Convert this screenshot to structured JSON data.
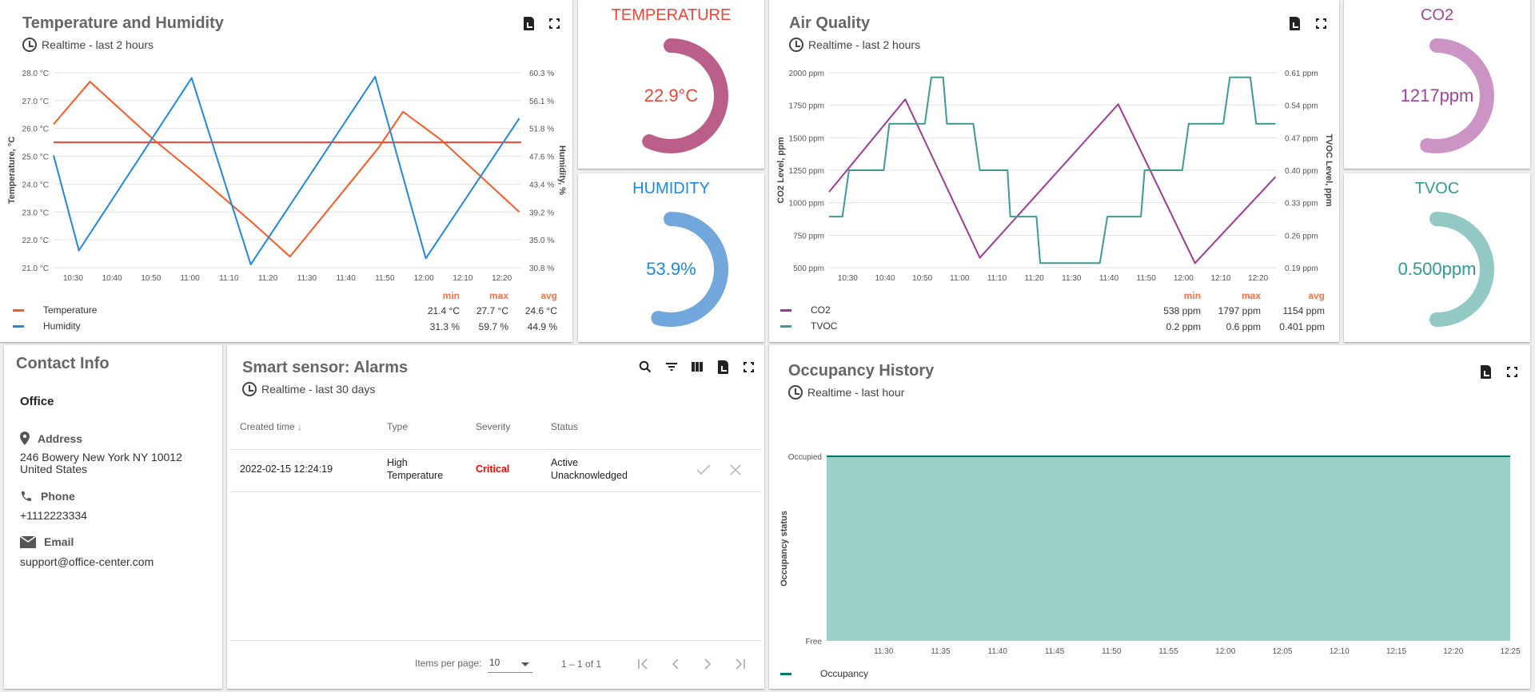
{
  "temp_humidity": {
    "title": "Temperature and Humidity",
    "subtitle": "Realtime - last 2 hours",
    "stats_headers": {
      "min": "min",
      "max": "max",
      "avg": "avg"
    },
    "legend": [
      {
        "name": "Temperature",
        "color": "#ff5722",
        "min": "21.4 °C",
        "max": "27.7 °C",
        "avg": "24.6 °C"
      },
      {
        "name": "Humidity",
        "color": "#1e88e5",
        "min": "31.3 %",
        "max": "59.7 %",
        "avg": "44.9 %"
      }
    ]
  },
  "gauges": {
    "temperature": {
      "title": "TEMPERATURE",
      "value": "22.9°C",
      "title_color": "#f44336",
      "value_color": "#f44336",
      "arc_color": "#bc5e8a",
      "level": 0.57
    },
    "humidity": {
      "title": "HUMIDITY",
      "value": "53.9%",
      "title_color": "#1e88e5",
      "value_color": "#1e88e5",
      "arc_color": "#72a7dc",
      "level": 0.54
    },
    "co2": {
      "title": "CO2",
      "value": "1217ppm",
      "title_color": "#a1439a",
      "value_color": "#a1439a",
      "arc_color": "#cb94c4",
      "level": 0.53
    },
    "tvoc": {
      "title": "TVOC",
      "value": "0.500ppm",
      "title_color": "#2e9c92",
      "value_color": "#2e9c92",
      "arc_color": "#93c9c4",
      "level": 0.5
    }
  },
  "air_quality": {
    "title": "Air Quality",
    "subtitle": "Realtime - last 2 hours",
    "stats_headers": {
      "min": "min",
      "max": "max",
      "avg": "avg"
    },
    "legend": [
      {
        "name": "CO2",
        "color": "#9c3a95",
        "min": "538 ppm",
        "max": "1797 ppm",
        "avg": "1154 ppm"
      },
      {
        "name": "TVOC",
        "color": "#3d9a94",
        "min": "0.2 ppm",
        "max": "0.6 ppm",
        "avg": "0.401 ppm"
      }
    ]
  },
  "contact": {
    "title": "Contact Info",
    "name": "Office",
    "address_label": "Address",
    "address_line1": "246 Bowery New York NY 10012",
    "address_line2": "United States",
    "phone_label": "Phone",
    "phone": "+1112223334",
    "email_label": "Email",
    "email": "support@office-center.com"
  },
  "alarms": {
    "title": "Smart sensor: Alarms",
    "subtitle": "Realtime - last 30 days",
    "columns": [
      "Created time",
      "Type",
      "Severity",
      "Status"
    ],
    "sort_icon": "arrow-down-icon",
    "rows": [
      {
        "created": "2022-02-15 12:24:19",
        "type_line1": "High",
        "type_line2": "Temperature",
        "severity": "Critical",
        "severity_color": "#ff0000",
        "status_line1": "Active",
        "status_line2": "Unacknowledged"
      }
    ],
    "items_per_page_label": "Items per page:",
    "items_per_page": "10",
    "range": "1 – 1 of 1"
  },
  "occupancy": {
    "title": "Occupancy History",
    "subtitle": "Realtime - last hour",
    "legend": [
      {
        "name": "Occupancy",
        "color": "#00796b"
      }
    ]
  },
  "chart_data": [
    {
      "type": "line",
      "title": "Temperature and Humidity",
      "x_ticks": [
        "10:30",
        "10:40",
        "10:50",
        "11:00",
        "11:10",
        "11:20",
        "11:30",
        "11:40",
        "11:50",
        "12:00",
        "12:10",
        "12:20"
      ],
      "xlim": [
        "10:25",
        "12:25"
      ],
      "y_left": {
        "label": "Temperature, °C",
        "lim": [
          21,
          28
        ],
        "ticks": [
          "21.0 °C",
          "22.0 °C",
          "23.0 °C",
          "24.0 °C",
          "25.0 °C",
          "26.0 °C",
          "27.0 °C",
          "28.0 °C"
        ]
      },
      "y_right": {
        "label": "Humidity, %",
        "lim": [
          30.8,
          60.3
        ],
        "ticks": [
          "30.8 %",
          "35.0 %",
          "39.2 %",
          "43.4 %",
          "47.6 %",
          "51.8 %",
          "56.1 %",
          "60.3 %"
        ]
      },
      "grid": true,
      "threshold": {
        "axis": "left",
        "value": 25.5,
        "color": "#f44336"
      },
      "series": [
        {
          "name": "Temperature",
          "axis": "left",
          "color": "#ff5722",
          "points": [
            [
              "10:25",
              26.15
            ],
            [
              "10:34:20",
              27.68
            ],
            [
              "10:50:50",
              25.58
            ],
            [
              "11:01:10",
              24.4
            ],
            [
              "11:16:10",
              22.6
            ],
            [
              "11:25:40",
              21.4
            ],
            [
              "11:33:40",
              22.77
            ],
            [
              "11:48:20",
              25.3
            ],
            [
              "11:54:40",
              26.6
            ],
            [
              "12:04:20",
              25.6
            ],
            [
              "12:24:30",
              23.0
            ]
          ]
        },
        {
          "name": "Humidity",
          "axis": "right",
          "color": "#1e88e5",
          "points": [
            [
              "10:25",
              47.8
            ],
            [
              "10:31:30",
              33.4
            ],
            [
              "11:00:25",
              59.5
            ],
            [
              "11:15:35",
              31.3
            ],
            [
              "11:47:30",
              59.7
            ],
            [
              "12:00:30",
              32.2
            ],
            [
              "12:24:30",
              53.4
            ]
          ]
        }
      ]
    },
    {
      "type": "line",
      "title": "Air Quality",
      "x_ticks": [
        "10:30",
        "10:40",
        "10:50",
        "11:00",
        "11:10",
        "11:20",
        "11:30",
        "11:40",
        "11:50",
        "12:00",
        "12:10",
        "12:20"
      ],
      "xlim": [
        "10:25",
        "12:25"
      ],
      "y_left": {
        "label": "CO2 Level, ppm",
        "lim": [
          500,
          2000
        ],
        "ticks": [
          "500 ppm",
          "750 ppm",
          "1000 ppm",
          "1250 ppm",
          "1500 ppm",
          "1750 ppm",
          "2000 ppm"
        ]
      },
      "y_right": {
        "label": "TVOC Level, ppm",
        "lim": [
          0.19,
          0.61
        ],
        "ticks": [
          "0.19 ppm",
          "0.26 ppm",
          "0.33 ppm",
          "0.40 ppm",
          "0.47 ppm",
          "0.54 ppm",
          "0.61 ppm"
        ]
      },
      "grid": true,
      "series": [
        {
          "name": "CO2",
          "axis": "left",
          "color": "#9c3a95",
          "points": [
            [
              "10:25",
              1082
            ],
            [
              "10:45:25",
              1795
            ],
            [
              "11:05:25",
              576
            ],
            [
              "11:42:30",
              1758
            ],
            [
              "12:03:05",
              535
            ],
            [
              "12:24:40",
              1199
            ]
          ]
        },
        {
          "name": "TVOC",
          "axis": "right",
          "color": "#3d9a94",
          "points": [
            [
              "10:25",
              0.3
            ],
            [
              "10:28:35",
              0.3
            ],
            [
              "10:30:20",
              0.4
            ],
            [
              "10:39:40",
              0.4
            ],
            [
              "10:41:10",
              0.5
            ],
            [
              "10:50:40",
              0.5
            ],
            [
              "10:52:25",
              0.6
            ],
            [
              "10:55:35",
              0.6
            ],
            [
              "10:56:35",
              0.5
            ],
            [
              "11:03:40",
              0.5
            ],
            [
              "11:05:25",
              0.4
            ],
            [
              "11:12:50",
              0.4
            ],
            [
              "11:13:35",
              0.3
            ],
            [
              "11:20:35",
              0.3
            ],
            [
              "11:21:35",
              0.2
            ],
            [
              "11:37:35",
              0.2
            ],
            [
              "11:39:35",
              0.3
            ],
            [
              "11:48:35",
              0.3
            ],
            [
              "11:49:35",
              0.4
            ],
            [
              "11:59:40",
              0.4
            ],
            [
              "12:01:25",
              0.5
            ],
            [
              "12:10:40",
              0.5
            ],
            [
              "12:12:25",
              0.6
            ],
            [
              "12:17:55",
              0.6
            ],
            [
              "12:19:30",
              0.5
            ],
            [
              "12:24:40",
              0.5
            ]
          ]
        }
      ]
    },
    {
      "type": "area",
      "title": "Occupancy History",
      "x_ticks": [
        "11:30",
        "11:35",
        "11:40",
        "11:45",
        "11:50",
        "11:55",
        "12:00",
        "12:05",
        "12:10",
        "12:15",
        "12:20",
        "12:25"
      ],
      "xlim": [
        "11:25",
        "12:25"
      ],
      "y_left": {
        "label": "Occupancy status",
        "lim": [
          0,
          1
        ],
        "ticks": [
          "Free",
          "Occupied"
        ]
      },
      "grid": false,
      "series": [
        {
          "name": "Occupancy",
          "axis": "left",
          "color": "#00796b",
          "fill": "#9bd0c9",
          "points": [
            [
              "11:25",
              1
            ],
            [
              "12:25",
              1
            ]
          ]
        }
      ]
    }
  ]
}
